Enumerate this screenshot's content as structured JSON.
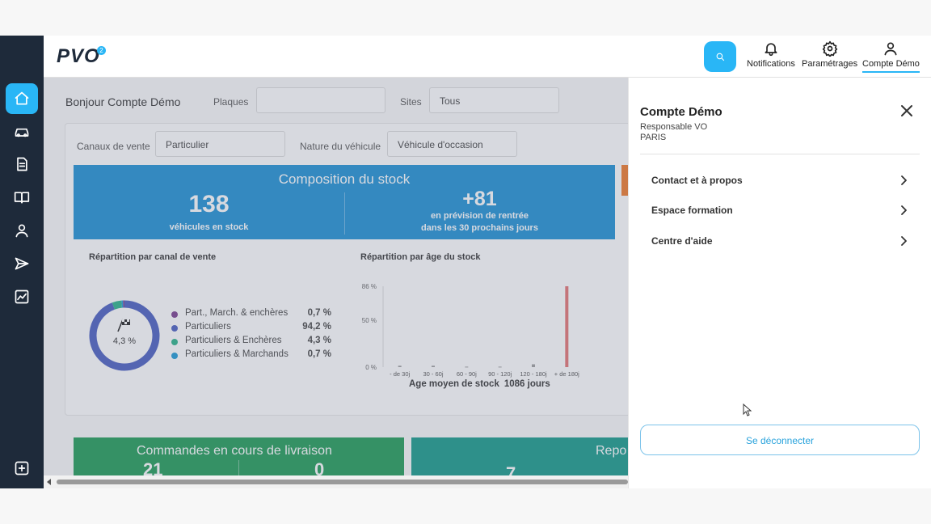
{
  "app": {
    "logo": "PVO",
    "logo_badge": "2"
  },
  "topbar": {
    "notifications_label": "Notifications",
    "settings_label": "Paramétrages",
    "account_label": "Compte Démo"
  },
  "dashboard": {
    "greeting": "Bonjour Compte Démo",
    "filters": {
      "plaques_label": "Plaques",
      "plaques_value": "",
      "sites_label": "Sites",
      "sites_value": "Tous",
      "canaux_label": "Canaux de vente",
      "canaux_value": "Particulier",
      "nature_label": "Nature du véhicule",
      "nature_value": "Véhicule d'occasion"
    },
    "stock": {
      "title": "Composition du stock",
      "count": "138",
      "count_label": "véhicules en stock",
      "forecast": "+81",
      "forecast_label_1": "en prévision de rentrée",
      "forecast_label_2": "dans les 30 prochains jours"
    },
    "channel_section_title": "Répartition par canal de vente",
    "donut_center_label": "4,3 %",
    "legend": [
      {
        "name": "Part., March. & enchères",
        "value": "0,7 %",
        "color": "#7b3f8f"
      },
      {
        "name": "Particuliers",
        "value": "94,2 %",
        "color": "#4a5fc1"
      },
      {
        "name": "Particuliers & Enchères",
        "value": "4,3 %",
        "color": "#2ab38a"
      },
      {
        "name": "Particuliers & Marchands",
        "value": "0,7 %",
        "color": "#1e9ad6"
      }
    ],
    "age_section_title": "Répartition par âge du stock",
    "avg_label": "Age moyen de stock",
    "avg_value": "1086 jours",
    "bottom": {
      "orders_title": "Commandes en cours de livraison",
      "orders_value_1": "21",
      "orders_value_2": "0",
      "right_title": "Repo",
      "right_value": "7"
    }
  },
  "chart_data": [
    {
      "type": "pie",
      "title": "Répartition par canal de vente",
      "labels": [
        "Part., March. & enchères",
        "Particuliers",
        "Particuliers & Enchères",
        "Particuliers & Marchands"
      ],
      "values": [
        0.7,
        94.2,
        4.3,
        0.7
      ],
      "colors": [
        "#7b3f8f",
        "#4a5fc1",
        "#2ab38a",
        "#1e9ad6"
      ]
    },
    {
      "type": "bar",
      "title": "Répartition par âge du stock",
      "categories": [
        "- de 30j",
        "30 - 60j",
        "60 - 90j",
        "90 - 120j",
        "120 - 180j",
        "+ de 180j"
      ],
      "values": [
        1.5,
        1.5,
        0.5,
        0.5,
        3,
        86
      ],
      "yticks": [
        "0 %",
        "50 %",
        "86 %"
      ],
      "ylim": [
        0,
        86
      ]
    }
  ],
  "panel": {
    "user_name": "Compte Démo",
    "role": "Responsable VO",
    "city": "PARIS",
    "menu": [
      {
        "label": "Contact et à propos"
      },
      {
        "label": "Espace formation"
      },
      {
        "label": "Centre d'aide"
      }
    ],
    "logout_label": "Se déconnecter"
  }
}
